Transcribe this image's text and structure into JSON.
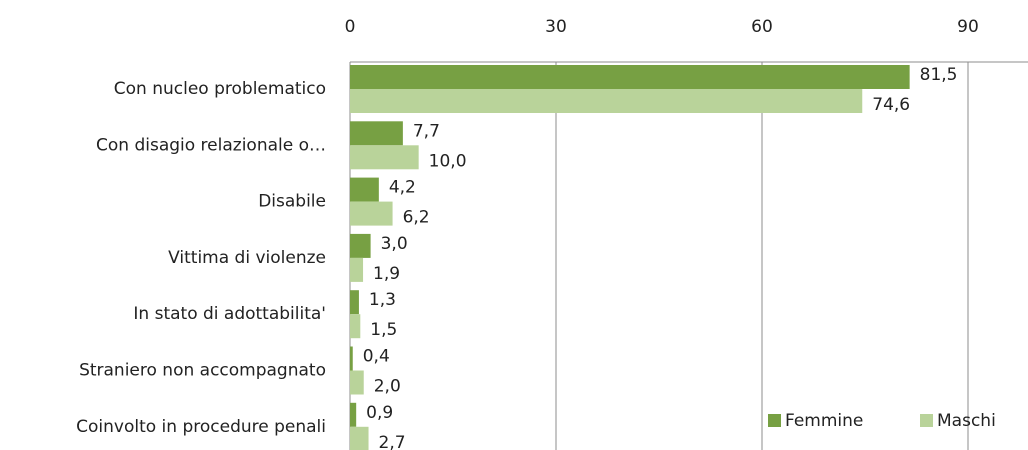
{
  "chart_data": {
    "type": "hbar",
    "categories": [
      "Con nucleo problematico",
      "Con disagio relazionale o…",
      "Disabile",
      "Vittima di violenze",
      "In stato di adottabilita'",
      "Straniero non accompagnato",
      "Coinvolto in procedure penali"
    ],
    "series": [
      {
        "name": "Femmine",
        "color": "#77a043",
        "values": [
          81.5,
          7.7,
          4.2,
          3.0,
          1.3,
          0.4,
          0.9
        ],
        "value_labels": [
          "81,5",
          "7,7",
          "4,2",
          "3,0",
          "1,3",
          "0,4",
          "0,9"
        ]
      },
      {
        "name": "Maschi",
        "color": "#b9d39a",
        "values": [
          74.6,
          10.0,
          6.2,
          1.9,
          1.5,
          2.0,
          2.7
        ],
        "value_labels": [
          "74,6",
          "10,0",
          "6,2",
          "1,9",
          "1,5",
          "2,0",
          "2,7"
        ]
      }
    ],
    "xlim": [
      0,
      90
    ],
    "xticks": [
      0,
      30,
      60,
      90
    ],
    "grid": true,
    "legend": "bottom-right"
  }
}
